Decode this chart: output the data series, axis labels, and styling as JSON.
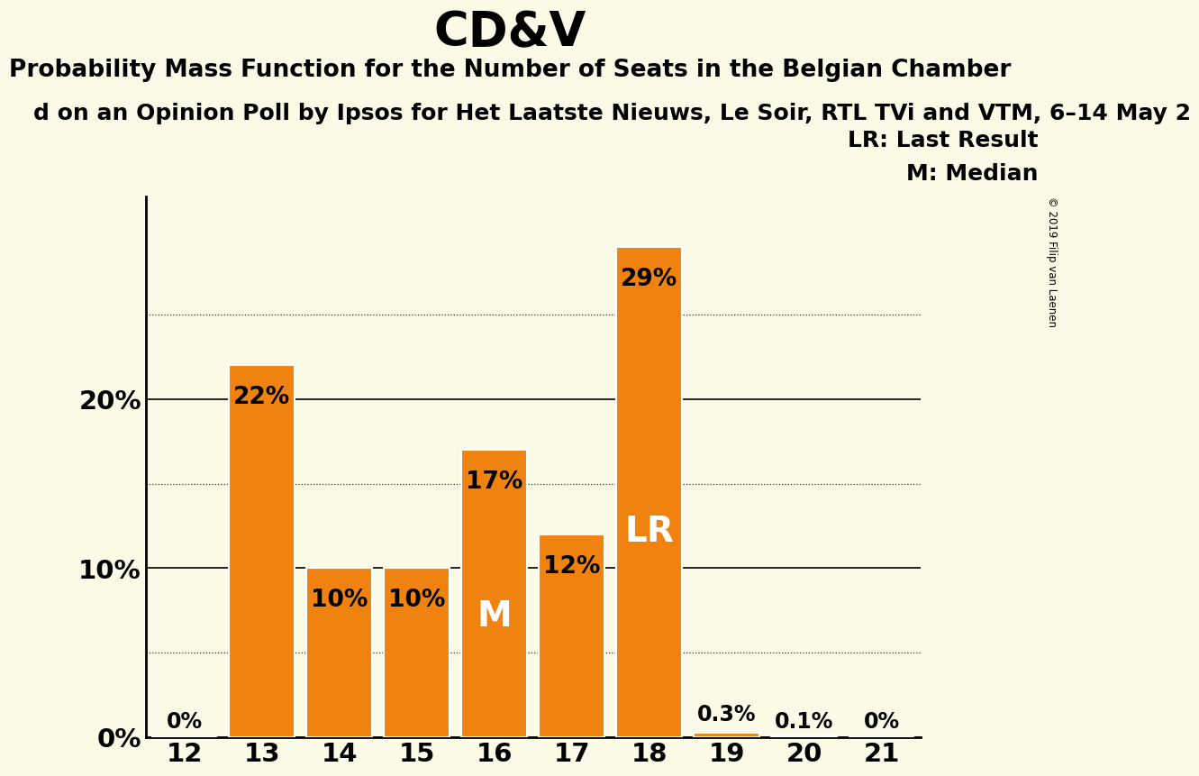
{
  "title": "CD&V",
  "subtitle": "Probability Mass Function for the Number of Seats in the Belgian Chamber",
  "sub_subtitle": "d on an Opinion Poll by Ipsos for Het Laatste Nieuws, Le Soir, RTL TVi and VTM, 6–14 May 2",
  "copyright": "© 2019 Filip van Laenen",
  "seats": [
    12,
    13,
    14,
    15,
    16,
    17,
    18,
    19,
    20,
    21
  ],
  "probabilities": [
    0.0,
    0.22,
    0.1,
    0.1,
    0.17,
    0.12,
    0.29,
    0.003,
    0.001,
    0.0
  ],
  "prob_labels": [
    "0%",
    "22%",
    "10%",
    "10%",
    "17%",
    "12%",
    "29%",
    "0.3%",
    "0.1%",
    "0%"
  ],
  "bar_color": "#f0820f",
  "bar_edge_color": "#ffffff",
  "background_color": "#fafae6",
  "text_color": "#1a1a1a",
  "median_seat": 16,
  "lr_seat": 18,
  "median_label": "M",
  "lr_label": "LR",
  "legend_lr": "LR: Last Result",
  "legend_m": "M: Median",
  "solid_ticks": [
    0.0,
    0.1,
    0.2
  ],
  "dotted_ticks": [
    0.05,
    0.15,
    0.25
  ],
  "ylim": [
    0,
    0.32
  ],
  "title_fontsize": 38,
  "subtitle_fontsize": 19,
  "sub_subtitle_fontsize": 18,
  "bar_label_fontsize": 19,
  "axis_label_fontsize": 21,
  "inner_label_fontsize": 28,
  "legend_fontsize": 18
}
